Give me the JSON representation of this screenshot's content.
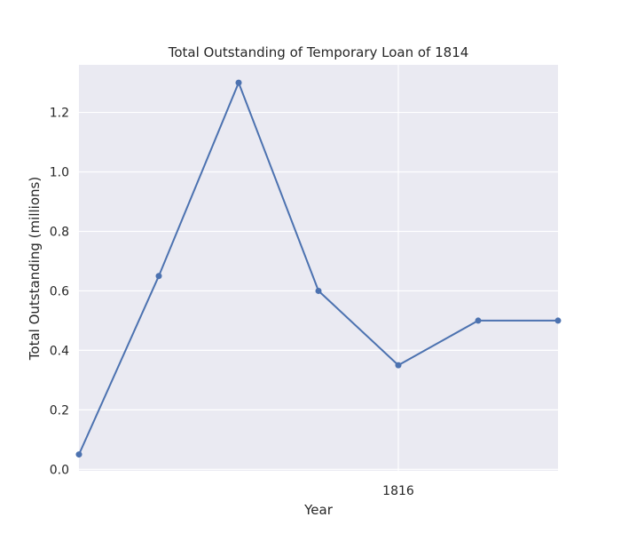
{
  "chart_data": {
    "type": "line",
    "title": "Total Outstanding of Temporary Loan of 1814",
    "xlabel": "Year",
    "ylabel": "Total Outstanding (millions)",
    "x_ticks": [
      {
        "value": 1816,
        "label": "1816"
      }
    ],
    "y_ticks": [
      {
        "value": 0.0,
        "label": "0.0"
      },
      {
        "value": 0.2,
        "label": "0.2"
      },
      {
        "value": 0.4,
        "label": "0.4"
      },
      {
        "value": 0.6,
        "label": "0.6"
      },
      {
        "value": 0.8,
        "label": "0.8"
      },
      {
        "value": 1.0,
        "label": "1.0"
      },
      {
        "value": 1.2,
        "label": "1.2"
      }
    ],
    "xlim": [
      1814.0,
      1817.0
    ],
    "ylim": [
      -0.005,
      1.36
    ],
    "grid": true,
    "series": [
      {
        "color": "#4c72b0",
        "x": [
          1814.0,
          1814.5,
          1815.0,
          1815.5,
          1816.0,
          1816.5,
          1817.0
        ],
        "values": [
          0.05,
          0.65,
          1.3,
          0.6,
          0.35,
          0.5,
          0.5
        ]
      }
    ],
    "colors": {
      "plot_bg": "#eaeaf2",
      "grid": "#ffffff",
      "text": "#262626",
      "line": "#4c72b0"
    }
  }
}
